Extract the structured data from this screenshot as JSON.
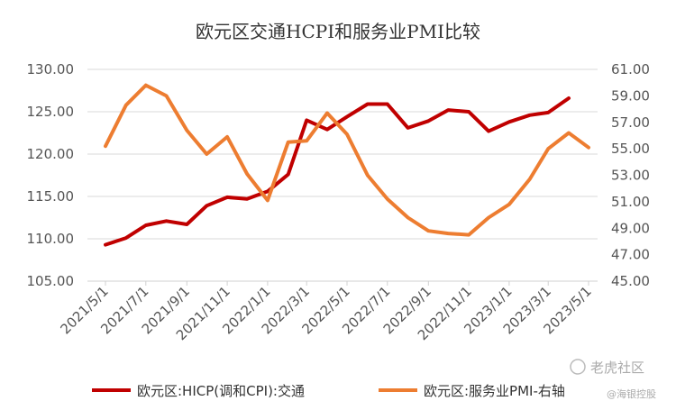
{
  "chart_data": {
    "type": "line",
    "title": "欧元区交通HCPI和服务业PMI比较",
    "x_tick_labels": [
      "2021/5/1",
      "2021/7/1",
      "2021/9/1",
      "2021/11/1",
      "2022/1/1",
      "2022/3/1",
      "2022/5/1",
      "2022/7/1",
      "2022/9/1",
      "2022/11/1",
      "2023/1/1",
      "2023/3/1",
      "2023/5/1"
    ],
    "y_left": {
      "min": 105,
      "max": 130,
      "step": 5,
      "tick_labels": [
        "105.00",
        "110.00",
        "115.00",
        "120.00",
        "125.00",
        "130.00"
      ]
    },
    "y_right": {
      "min": 45,
      "max": 61,
      "step": 2,
      "tick_labels": [
        "45.00",
        "47.00",
        "49.00",
        "51.00",
        "53.00",
        "55.00",
        "57.00",
        "59.00",
        "61.00"
      ]
    },
    "grid": true,
    "legend_position": "bottom",
    "series": [
      {
        "name": "欧元区:HICP(调和CPI):交通",
        "axis": "left",
        "color": "#C00000",
        "x": [
          "2021/5/1",
          "2021/6/1",
          "2021/7/1",
          "2021/8/1",
          "2021/9/1",
          "2021/10/1",
          "2021/11/1",
          "2021/12/1",
          "2022/1/1",
          "2022/2/1",
          "2022/3/1",
          "2022/4/1",
          "2022/5/1",
          "2022/6/1",
          "2022/7/1",
          "2022/8/1",
          "2022/9/1",
          "2022/10/1",
          "2022/11/1",
          "2022/12/1",
          "2023/1/1",
          "2023/2/1",
          "2023/3/1",
          "2023/4/1"
        ],
        "values": [
          109.3,
          110.1,
          111.6,
          112.1,
          111.7,
          113.9,
          114.9,
          114.7,
          115.6,
          117.6,
          124.0,
          122.9,
          124.4,
          125.9,
          125.9,
          123.1,
          123.9,
          125.2,
          125.0,
          122.7,
          123.8,
          124.6,
          124.9,
          126.6
        ]
      },
      {
        "name": "欧元区:服务业PMI-右轴",
        "axis": "right",
        "color": "#ED7D31",
        "x": [
          "2021/5/1",
          "2021/6/1",
          "2021/7/1",
          "2021/8/1",
          "2021/9/1",
          "2021/10/1",
          "2021/11/1",
          "2021/12/1",
          "2022/1/1",
          "2022/2/1",
          "2022/3/1",
          "2022/4/1",
          "2022/5/1",
          "2022/6/1",
          "2022/7/1",
          "2022/8/1",
          "2022/9/1",
          "2022/10/1",
          "2022/11/1",
          "2022/12/1",
          "2023/1/1",
          "2023/2/1",
          "2023/3/1",
          "2023/4/1",
          "2023/5/1"
        ],
        "values": [
          55.2,
          58.3,
          59.8,
          59.0,
          56.4,
          54.6,
          55.9,
          53.1,
          51.1,
          55.5,
          55.6,
          57.7,
          56.1,
          53.0,
          51.2,
          49.8,
          48.8,
          48.6,
          48.5,
          49.8,
          50.8,
          52.7,
          55.0,
          56.2,
          55.1
        ]
      }
    ]
  },
  "watermark": {
    "brand": "老虎社区",
    "account": "@海银控股"
  }
}
